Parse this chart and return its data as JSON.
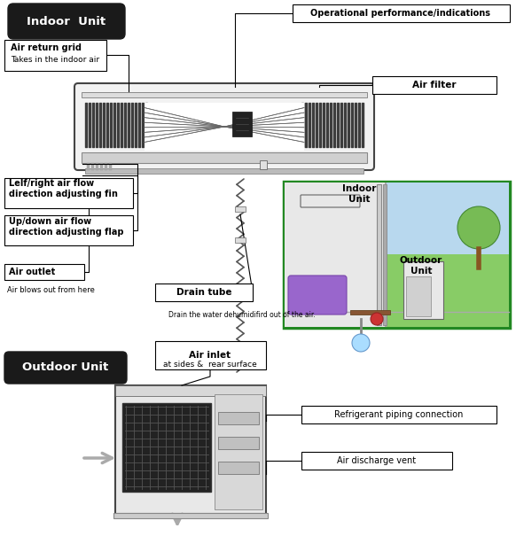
{
  "bg_color": "#ffffff",
  "indoor_unit_label": "Indoor  Unit",
  "outdoor_unit_label": "Outdoor Unit",
  "labels": {
    "air_return_grid_title": "Air return grid",
    "air_return_grid_sub": "Takes in the indoor air",
    "operational": "Operational performance/indications",
    "air_filter": "Air filter",
    "left_right_fin": "Lelf/right air flow\ndirection adjusting fin",
    "updown_flap": "Up/down air flow\ndirection adjusting flap",
    "air_outlet_title": "Air outlet",
    "air_outlet_sub": "Air blows out from here",
    "drain_tube_title": "Drain tube",
    "drain_tube_sub": "Drain the water dehumidifird out of the air.",
    "air_inlet_title": "Air inlet",
    "air_inlet_sub": "at sides &  rear surface",
    "refrigerant": "Refrigerant piping connection",
    "air_discharge": "Air discharge vent",
    "indoor_unit_inset": "Indoor\nUnit",
    "outdoor_unit_inset": "Outdoor\nUnit"
  },
  "colors": {
    "pill_bg": "#1a1a1a",
    "pill_text": "#ffffff",
    "box_border": "#000000",
    "box_fill": "#ffffff",
    "iu_body": "#f5f5f5",
    "iu_body_border": "#333333",
    "iu_grille_fill": "#2a2a2a",
    "iu_fan_line": "#888888",
    "iu_center_box": "#333333",
    "iu_bottom_strip": "#cccccc",
    "pipe_color": "#555555",
    "inset_border": "#228822",
    "inset_bg_indoor": "#e8e8e8",
    "inset_bg_outdoor": "#88cc66",
    "sky_color": "#b8d8ee",
    "floor_color": "#c8c8c8",
    "wall_color": "#e0e0e0",
    "couch_color": "#9966cc",
    "lamp_color": "#aaddff",
    "lamp_base": "#888888",
    "table_color": "#885533",
    "phone_color": "#cc3333",
    "tree_color": "#66aa44",
    "trunk_color": "#885522",
    "ou_body": "#e0e0e0",
    "ou_border": "#333333",
    "ou_grille": "#888888",
    "arrow_color": "#aaaaaa"
  }
}
